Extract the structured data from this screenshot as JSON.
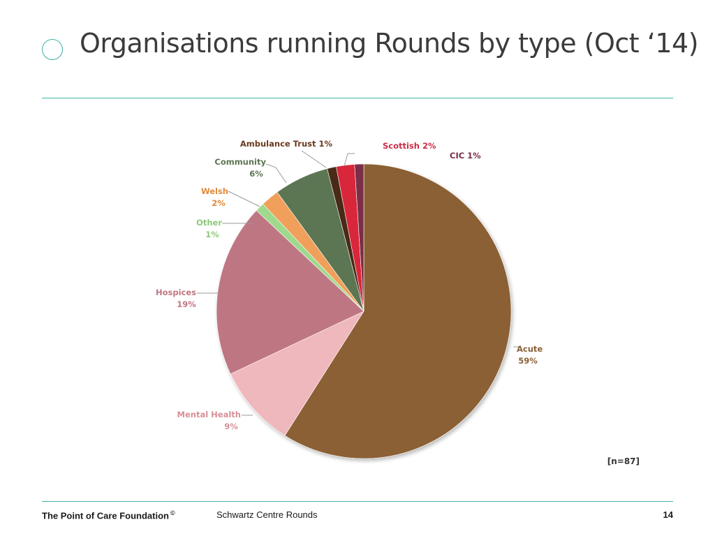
{
  "slide": {
    "title": "Organisations running Rounds by type (Oct ‘14)",
    "footer_org": "The Point of Care Foundation",
    "footer_copyright": "©",
    "footer_center": "Schwartz Centre Rounds",
    "page_number": "14"
  },
  "chart_data": {
    "type": "pie",
    "note": "[n=87]",
    "slices": [
      {
        "label": "Acute",
        "pct": "59%",
        "value": 59,
        "color": "#8b6136",
        "label_color": "#8b6136"
      },
      {
        "label": "Mental Health",
        "pct": "9%",
        "value": 9,
        "color": "#efb8bc",
        "label_color": "#d78f98"
      },
      {
        "label": "Hospices",
        "pct": "19%",
        "value": 19,
        "color": "#bf7683",
        "label_color": "#bf7683"
      },
      {
        "label": "Other",
        "pct": "1%",
        "value": 1,
        "color": "#9fd98d",
        "label_color": "#8cc97a"
      },
      {
        "label": "Welsh",
        "pct": "2%",
        "value": 2,
        "color": "#f0a05a",
        "label_color": "#e08a3c"
      },
      {
        "label": "Community",
        "pct": "6%",
        "value": 6,
        "color": "#5c7552",
        "label_color": "#5c7552"
      },
      {
        "label": "Ambulance Trust",
        "pct": "1%",
        "value": 1,
        "color": "#4a2a14",
        "label_color": "#6a3a1e"
      },
      {
        "label": "Scottish",
        "pct": "2%",
        "value": 2,
        "color": "#d8283a",
        "label_color": "#c82e48"
      },
      {
        "label": "CIC",
        "pct": "1%",
        "value": 1,
        "color": "#7a2e46",
        "label_color": "#7a2e46"
      }
    ]
  }
}
